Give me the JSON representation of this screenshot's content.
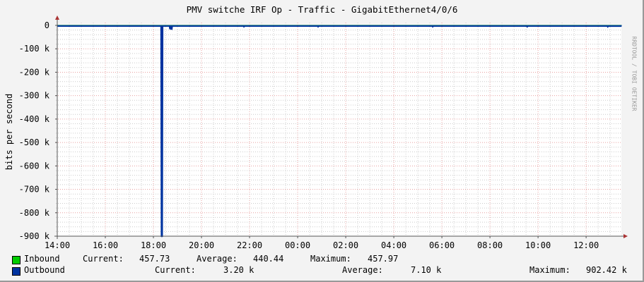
{
  "title": "PMV switche IRF Op - Traffic - GigabitEthernet4/0/6",
  "watermark": "RRDTOOL / TOBI OETIKER",
  "chart_data": {
    "type": "area",
    "title": "PMV switche IRF Op - Traffic - GigabitEthernet4/0/6",
    "ylabel": "bits per second",
    "xlabel": "",
    "ylim": [
      -900000,
      0
    ],
    "xlim": [
      "14:00",
      "13:28"
    ],
    "grid": true,
    "legend": "bottom",
    "x_ticks": [
      "14:00",
      "16:00",
      "18:00",
      "20:00",
      "22:00",
      "00:00",
      "02:00",
      "04:00",
      "06:00",
      "08:00",
      "10:00",
      "12:00"
    ],
    "y_ticks": [
      {
        "value": 0,
        "label": "0"
      },
      {
        "value": -100000,
        "label": "-100 k"
      },
      {
        "value": -200000,
        "label": "-200 k"
      },
      {
        "value": -300000,
        "label": "-300 k"
      },
      {
        "value": -400000,
        "label": "-400 k"
      },
      {
        "value": -500000,
        "label": "-500 k"
      },
      {
        "value": -600000,
        "label": "-600 k"
      },
      {
        "value": -700000,
        "label": "-700 k"
      },
      {
        "value": -800000,
        "label": "-800 k"
      },
      {
        "value": -900000,
        "label": "-900 k"
      }
    ],
    "series": [
      {
        "name": "Inbound",
        "color": "#00cc00",
        "points": [
          [
            "14:00",
            458
          ],
          [
            "13:28",
            458
          ]
        ]
      },
      {
        "name": "Outbound",
        "color": "#0033a0",
        "points": [
          [
            "14:00",
            -3000
          ],
          [
            "18:19",
            -3000
          ],
          [
            "18:20",
            -902420
          ],
          [
            "18:22",
            -902420
          ],
          [
            "18:23",
            -3000
          ],
          [
            "18:40",
            -3000
          ],
          [
            "18:41",
            -14000
          ],
          [
            "18:46",
            -16000
          ],
          [
            "18:47",
            -3000
          ],
          [
            "21:45",
            -3000
          ],
          [
            "21:46",
            -6000
          ],
          [
            "21:48",
            -3000
          ],
          [
            "00:50",
            -3000
          ],
          [
            "00:51",
            -6000
          ],
          [
            "00:53",
            -3000
          ],
          [
            "05:36",
            -3000
          ],
          [
            "05:37",
            -6000
          ],
          [
            "05:39",
            -3000
          ],
          [
            "09:32",
            -3000
          ],
          [
            "09:33",
            -6000
          ],
          [
            "09:35",
            -3000
          ],
          [
            "12:53",
            -3000
          ],
          [
            "12:54",
            -6000
          ],
          [
            "12:56",
            -3000
          ],
          [
            "13:28",
            -3200
          ]
        ]
      }
    ]
  },
  "legend": [
    {
      "name": "Inbound",
      "color": "#00cc00",
      "current_label": "Current:",
      "current": "457.73",
      "average_label": "Average:",
      "average": "440.44",
      "maximum_label": "Maximum:",
      "maximum": "457.97"
    },
    {
      "name": "Outbound",
      "color": "#0033a0",
      "current_label": "Current:",
      "current": "3.20 k",
      "average_label": "Average:",
      "average": "7.10 k",
      "maximum_label": "Maximum:",
      "maximum": "902.42 k"
    }
  ]
}
